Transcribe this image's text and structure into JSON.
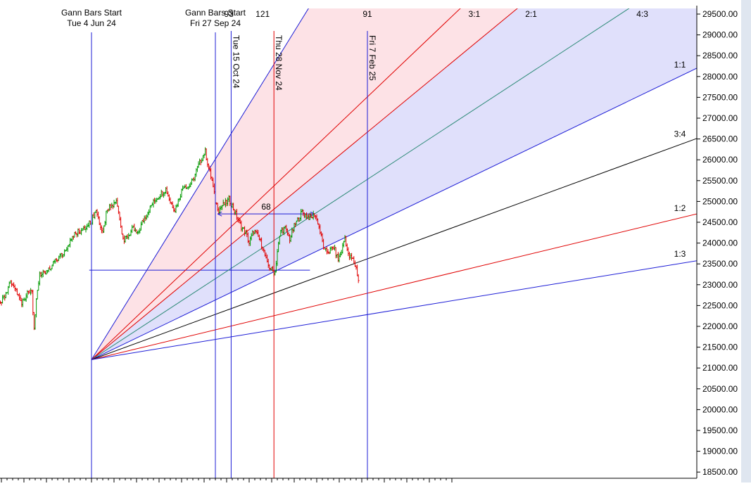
{
  "chart_data": {
    "type": "candlestick",
    "title": "",
    "y_axis": {
      "position": "right",
      "min": 18300,
      "max": 29700,
      "ticks": [
        29500,
        29000,
        28500,
        28000,
        27500,
        27000,
        26500,
        26000,
        25500,
        25000,
        24500,
        24000,
        23500,
        23000,
        22500,
        22000,
        21500,
        21000,
        20500,
        20000,
        19500,
        19000,
        18500
      ],
      "tick_labels": [
        "29500.00",
        "29000.00",
        "28500.00",
        "28000.00",
        "27500.00",
        "27000.00",
        "26500.00",
        "26000.00",
        "25500.00",
        "25000.00",
        "24500.00",
        "24000.00",
        "23500.00",
        "23000.00",
        "22500.00",
        "22000.00",
        "21500.00",
        "21000.00",
        "20500.00",
        "20000.00",
        "19500.00",
        "19000.00",
        "18500.00"
      ]
    },
    "x_axis": {
      "start_index": -120,
      "end_index": 220,
      "labels": []
    },
    "colors": {
      "up": "#009a00",
      "down": "#e00000",
      "gann_blue": "#1c1cd6",
      "gann_red": "#e00000",
      "teal": "#2e8b78",
      "black": "#000000",
      "fill_red": "#fde2e6",
      "fill_blue": "#e0e0fb"
    },
    "key_points": [
      {
        "i": -128,
        "close": 22500
      },
      {
        "i": -122,
        "close": 22650
      },
      {
        "i": -118,
        "close": 22700
      },
      {
        "i": -113,
        "close": 22450
      },
      {
        "i": -108,
        "close": 22700
      },
      {
        "i": -103,
        "close": 22800
      },
      {
        "i": -99,
        "close": 22400
      },
      {
        "i": -95,
        "close": 22150
      },
      {
        "i": -91,
        "close": 22000
      },
      {
        "i": -86,
        "close": 22350
      },
      {
        "i": -80,
        "close": 22600
      },
      {
        "i": -76,
        "close": 22750
      },
      {
        "i": -72,
        "close": 23050
      },
      {
        "i": -67,
        "close": 22850
      },
      {
        "i": -63,
        "close": 22550
      },
      {
        "i": -59,
        "close": 22600
      },
      {
        "i": -57,
        "close": 22800
      },
      {
        "i": -55,
        "close": 22850
      },
      {
        "i": -53,
        "close": 22850
      },
      {
        "i": -51,
        "close": 21900
      },
      {
        "i": -49,
        "close": 22600
      },
      {
        "i": -46,
        "close": 23250
      },
      {
        "i": -42,
        "close": 23300
      },
      {
        "i": -36,
        "close": 23450
      },
      {
        "i": -30,
        "close": 23650
      },
      {
        "i": -25,
        "close": 23700
      },
      {
        "i": -20,
        "close": 24000
      },
      {
        "i": -15,
        "close": 24250
      },
      {
        "i": -10,
        "close": 24300
      },
      {
        "i": -5,
        "close": 24350
      },
      {
        "i": 0,
        "close": 24550
      },
      {
        "i": 4,
        "close": 24800
      },
      {
        "i": 7,
        "close": 24500
      },
      {
        "i": 10,
        "close": 24200
      },
      {
        "i": 13,
        "close": 24700
      },
      {
        "i": 16,
        "close": 24850
      },
      {
        "i": 19,
        "close": 24900
      },
      {
        "i": 22,
        "close": 25000
      },
      {
        "i": 24,
        "close": 24800
      },
      {
        "i": 26,
        "close": 24400
      },
      {
        "i": 29,
        "close": 24050
      },
      {
        "i": 33,
        "close": 24200
      },
      {
        "i": 37,
        "close": 24350
      },
      {
        "i": 41,
        "close": 24200
      },
      {
        "i": 45,
        "close": 24500
      },
      {
        "i": 49,
        "close": 24700
      },
      {
        "i": 53,
        "close": 24900
      },
      {
        "i": 57,
        "close": 25050
      },
      {
        "i": 62,
        "close": 25200
      },
      {
        "i": 66,
        "close": 25300
      },
      {
        "i": 70,
        "close": 25000
      },
      {
        "i": 74,
        "close": 24800
      },
      {
        "i": 78,
        "close": 25100
      },
      {
        "i": 82,
        "close": 25400
      },
      {
        "i": 86,
        "close": 25350
      },
      {
        "i": 90,
        "close": 25500
      },
      {
        "i": 94,
        "close": 25800
      },
      {
        "i": 98,
        "close": 26050
      },
      {
        "i": 101,
        "close": 26200
      },
      {
        "i": 104,
        "close": 25800
      },
      {
        "i": 107,
        "close": 25500
      },
      {
        "i": 110,
        "close": 25000
      },
      {
        "i": 113,
        "close": 24800
      },
      {
        "i": 116,
        "close": 24900
      },
      {
        "i": 119,
        "close": 24950
      },
      {
        "i": 122,
        "close": 25050
      },
      {
        "i": 125,
        "close": 24900
      },
      {
        "i": 128,
        "close": 24700
      },
      {
        "i": 131,
        "close": 24500
      },
      {
        "i": 134,
        "close": 24350
      },
      {
        "i": 137,
        "close": 24250
      },
      {
        "i": 140,
        "close": 24000
      },
      {
        "i": 144,
        "close": 24300
      },
      {
        "i": 148,
        "close": 24150
      },
      {
        "i": 152,
        "close": 23900
      },
      {
        "i": 156,
        "close": 23500
      },
      {
        "i": 160,
        "close": 23350
      },
      {
        "i": 163,
        "close": 23300
      },
      {
        "i": 165,
        "close": 23800
      },
      {
        "i": 168,
        "close": 24300
      },
      {
        "i": 172,
        "close": 24350
      },
      {
        "i": 176,
        "close": 24100
      },
      {
        "i": 180,
        "close": 24400
      },
      {
        "i": 184,
        "close": 24600
      },
      {
        "i": 187,
        "close": 24750
      },
      {
        "i": 191,
        "close": 24650
      },
      {
        "i": 195,
        "close": 24600
      },
      {
        "i": 198,
        "close": 24700
      },
      {
        "i": 201,
        "close": 24500
      },
      {
        "i": 204,
        "close": 24150
      },
      {
        "i": 207,
        "close": 23800
      },
      {
        "i": 211,
        "close": 23800
      },
      {
        "i": 215,
        "close": 23900
      },
      {
        "i": 219,
        "close": 23600
      },
      {
        "i": 222,
        "close": 23800
      },
      {
        "i": 225,
        "close": 24150
      },
      {
        "i": 228,
        "close": 23700
      },
      {
        "i": 232,
        "close": 23600
      },
      {
        "i": 235,
        "close": 23400
      },
      {
        "i": 237,
        "close": 23100
      }
    ],
    "gann_origin": {
      "i": 0,
      "price": 21200
    },
    "gann_fan": [
      {
        "ratio": "2:1 upper",
        "through": {
          "i": 201,
          "price": 30000
        },
        "color": "gann_blue",
        "label": ""
      },
      {
        "ratio": "3:1",
        "through": {
          "i": 330,
          "price": 29700
        },
        "color": "gann_red",
        "label": "3:1"
      },
      {
        "ratio": "2:1",
        "through": {
          "i": 260,
          "price": 27000
        },
        "color": "gann_red",
        "label": "2:1"
      },
      {
        "ratio": "4:3",
        "through": {
          "i": 430,
          "price": 28800
        },
        "color": "teal",
        "label": "4:3"
      },
      {
        "ratio": "1:1",
        "through": {
          "i": 430,
          "price": 26800
        },
        "color": "gann_blue",
        "label": "1:1"
      },
      {
        "ratio": "3:4",
        "through": {
          "i": 430,
          "price": 25450
        },
        "color": "black",
        "label": "3:4"
      },
      {
        "ratio": "1:2",
        "through": {
          "i": 430,
          "price": 24000
        },
        "color": "gann_red",
        "label": "1:2"
      },
      {
        "ratio": "1:3",
        "through": {
          "i": 430,
          "price": 23100
        },
        "color": "gann_blue",
        "label": "1:3"
      }
    ],
    "vertical_lines": [
      {
        "i": 0,
        "color": "gann_blue",
        "label_lines": [
          "Gann Bars Start",
          "Tue 4 Jun 24"
        ],
        "vertical_text": ""
      },
      {
        "i": 110,
        "color": "gann_blue",
        "label_lines": [
          "Gann Bars Start",
          "Fri 27 Sep 24"
        ],
        "vertical_text": ""
      },
      {
        "i": 124,
        "color": "gann_blue",
        "label_lines": [],
        "vertical_text": "Tue 15 Oct 24"
      },
      {
        "i": 162,
        "color": "gann_red",
        "label_lines": [],
        "vertical_text": "Thu 28 Nov 24"
      },
      {
        "i": 245,
        "color": "gann_blue",
        "label_lines": [],
        "vertical_text": "Fri 7 Feb 25"
      }
    ],
    "horizontal_lines": [
      {
        "price": 23350,
        "from_i": -2,
        "to_i": 194,
        "color": "gann_blue"
      },
      {
        "price": 24700,
        "from_i": 112,
        "to_i": 198,
        "color": "gann_blue",
        "arrows": true,
        "label": "68"
      }
    ],
    "top_labels": [
      {
        "i": 122,
        "text": "93"
      },
      {
        "i": 152,
        "text": "121"
      },
      {
        "i": 245,
        "text": "91"
      }
    ],
    "fan_fills": [
      {
        "between": [
          "2:1 upper",
          "2:1"
        ],
        "color": "fill_red"
      },
      {
        "between": [
          "2:1",
          "1:1"
        ],
        "color": "fill_blue"
      }
    ]
  }
}
